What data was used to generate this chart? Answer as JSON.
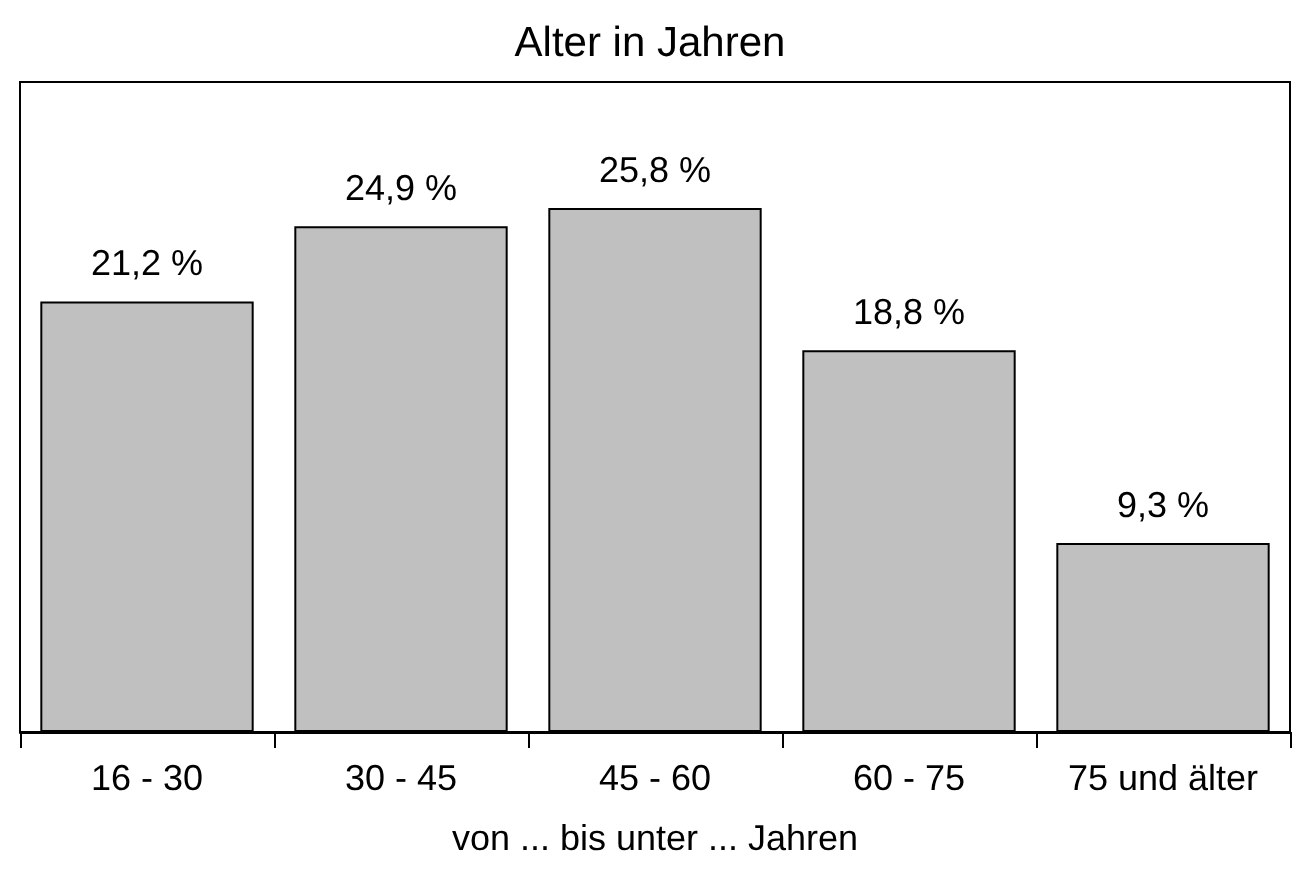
{
  "chart_data": {
    "type": "bar",
    "title": "Alter in Jahren",
    "xlabel": "von ... bis unter ... Jahren",
    "categories": [
      "16 - 30",
      "30 - 45",
      "45 - 60",
      "60 - 75",
      "75 und älter"
    ],
    "values": [
      21.2,
      24.9,
      25.8,
      18.8,
      9.3
    ],
    "value_labels": [
      "21,2 %",
      "24,9 %",
      "25,8 %",
      "18,8 %",
      "9,3 %"
    ],
    "color": "#c0c0c0",
    "ylim": [
      0,
      32
    ],
    "tick_labels": "x",
    "grid": false
  }
}
